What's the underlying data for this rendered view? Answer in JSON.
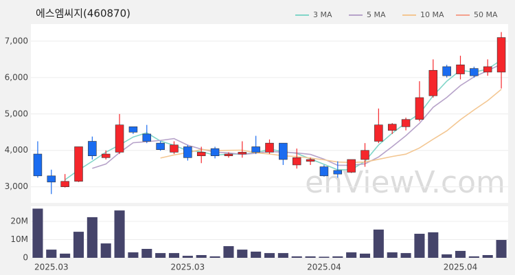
{
  "chart_data": [
    {
      "type": "candlestick",
      "title": "에스엠씨지(460870)",
      "watermark": "enViewV.com",
      "up_color": "#f5262b",
      "down_color": "#1a6cf0",
      "open": [
        3900,
        3300,
        3000,
        3150,
        4250,
        3800,
        3950,
        4650,
        4450,
        4200,
        3950,
        4100,
        3850,
        4050,
        3850,
        3900,
        4100,
        3950,
        4200,
        3600,
        3700,
        3550,
        3450,
        3400,
        3750,
        4250,
        4550,
        4650,
        4850,
        5500,
        6300,
        6100,
        6250,
        6150,
        6150
      ],
      "high": [
        4250,
        3470,
        3350,
        4100,
        4380,
        4000,
        5000,
        4650,
        4700,
        4250,
        4250,
        4150,
        4100,
        4100,
        3950,
        4250,
        4400,
        4300,
        4200,
        4050,
        3800,
        3600,
        3700,
        3750,
        4200,
        5150,
        4750,
        4900,
        5900,
        6500,
        6350,
        6600,
        6300,
        6500,
        7250
      ],
      "low": [
        3250,
        2800,
        2980,
        3130,
        3750,
        3750,
        3900,
        4450,
        4200,
        3990,
        3900,
        3720,
        3650,
        3780,
        3800,
        3800,
        3900,
        3900,
        3600,
        3500,
        3600,
        3280,
        3250,
        3380,
        3550,
        4200,
        4450,
        4550,
        4800,
        5450,
        6000,
        5950,
        6000,
        6050,
        5700
      ],
      "close": [
        3300,
        3130,
        3150,
        4100,
        3850,
        3900,
        4700,
        4500,
        4250,
        4020,
        4150,
        3800,
        3950,
        3850,
        3900,
        3950,
        3950,
        4200,
        3750,
        3800,
        3750,
        3300,
        3350,
        3750,
        4000,
        4700,
        4720,
        4850,
        5450,
        6200,
        6050,
        6350,
        6050,
        6300,
        7100
      ],
      "series": [
        {
          "name": "3 MA",
          "color": "#80d5c8",
          "values": [
            null,
            null,
            3193,
            3460,
            3700,
            3950,
            4150,
            4367,
            4483,
            4257,
            4140,
            3990,
            3967,
            3867,
            3900,
            3900,
            3933,
            4033,
            3967,
            3917,
            3767,
            3617,
            3467,
            3467,
            3700,
            4150,
            4473,
            4757,
            5007,
            5500,
            5900,
            6200,
            6150,
            6233,
            6483
          ]
        },
        {
          "name": "5 MA",
          "color": "#b6a2c9",
          "values": [
            null,
            null,
            null,
            null,
            3506,
            3626,
            3940,
            4210,
            4240,
            4274,
            4324,
            4144,
            4034,
            3954,
            3930,
            3890,
            3920,
            3970,
            3950,
            3930,
            3890,
            3760,
            3590,
            3590,
            3630,
            3820,
            4104,
            4404,
            4744,
            5184,
            5454,
            5780,
            6020,
            6190,
            6370
          ]
        },
        {
          "name": "10 MA",
          "color": "#f3c691",
          "values": [
            null,
            null,
            null,
            null,
            null,
            null,
            null,
            null,
            null,
            3790,
            3875,
            3942,
            4022,
            3997,
            4002,
            4007,
            3932,
            3902,
            3852,
            3830,
            3790,
            3740,
            3680,
            3670,
            3680,
            3755,
            3832,
            3897,
            4067,
            4307,
            4537,
            4842,
            5112,
            5367,
            5677
          ]
        },
        {
          "name": "50 MA",
          "color": "#f4a08c",
          "values": [
            null,
            null,
            null,
            null,
            null,
            null,
            null,
            null,
            null,
            null,
            null,
            null,
            null,
            null,
            null,
            null,
            null,
            null,
            null,
            null,
            null,
            null,
            null,
            null,
            null,
            null,
            null,
            null,
            null,
            null,
            null,
            null,
            null,
            null,
            null
          ]
        }
      ],
      "ylim": [
        2560,
        7470
      ],
      "yticks": [
        {
          "value": 3000,
          "label": "3,000"
        },
        {
          "value": 4000,
          "label": "4,000"
        },
        {
          "value": 5000,
          "label": "5,000"
        },
        {
          "value": 6000,
          "label": "6,000"
        },
        {
          "value": 7000,
          "label": "7,000"
        }
      ],
      "grid": true
    },
    {
      "type": "bar",
      "color": "#45446a",
      "categories": [
        null,
        "2025.03",
        null,
        null,
        null,
        null,
        null,
        null,
        null,
        null,
        null,
        "2025.03",
        null,
        null,
        null,
        null,
        null,
        null,
        null,
        null,
        null,
        "2025.04",
        null,
        null,
        null,
        null,
        null,
        null,
        null,
        null,
        null,
        "2025.04",
        null,
        null,
        null
      ],
      "values": [
        27000000,
        4500000,
        2300000,
        14300000,
        22300000,
        7900000,
        26000000,
        3000000,
        4900000,
        2600000,
        2600000,
        1100000,
        1500000,
        800000,
        6400000,
        4500000,
        3400000,
        2600000,
        2600000,
        800000,
        800000,
        600000,
        800000,
        3000000,
        2300000,
        15500000,
        3000000,
        2600000,
        13200000,
        14000000,
        1900000,
        3800000,
        800000,
        1500000,
        9800000
      ],
      "ylim": [
        0,
        28300000
      ],
      "yticks": [
        0,
        {
          "value": 10000000,
          "label": "10M"
        },
        {
          "value": 20000000,
          "label": "20M"
        }
      ],
      "grid": true
    }
  ]
}
